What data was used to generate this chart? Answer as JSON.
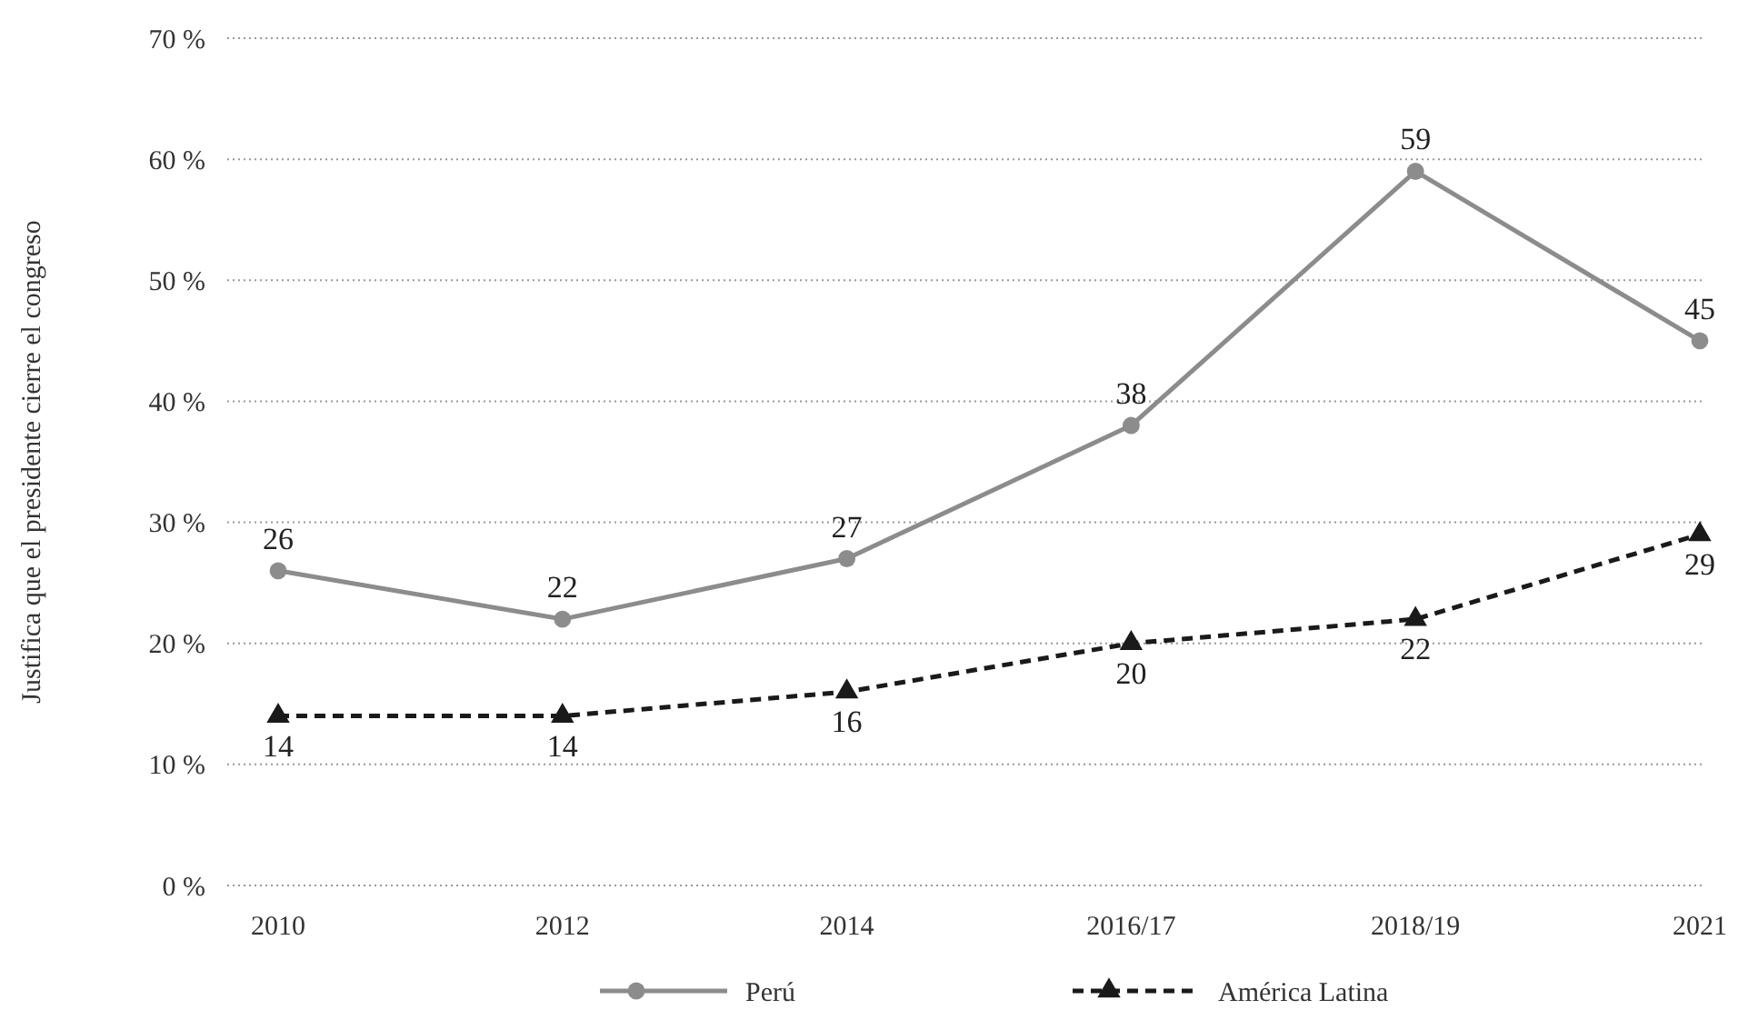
{
  "chart_data": {
    "type": "line",
    "ylabel": "Justifica que el presidente cierre el congreso",
    "categories": [
      "2010",
      "2012",
      "2014",
      "2016/17",
      "2018/19",
      "2021"
    ],
    "series": [
      {
        "name": "Perú",
        "color": "#8c8c8c",
        "values": [
          26,
          22,
          27,
          38,
          59,
          45
        ],
        "marker": "circle",
        "line_style": "solid"
      },
      {
        "name": "América Latina",
        "color": "#1a1a1a",
        "values": [
          14,
          14,
          16,
          20,
          22,
          29
        ],
        "marker": "triangle",
        "line_style": "dashed"
      }
    ],
    "ylim": [
      0,
      70
    ],
    "yticks": [
      {
        "value": 0,
        "label": "0 %"
      },
      {
        "value": 10,
        "label": "10 %"
      },
      {
        "value": 20,
        "label": "20 %"
      },
      {
        "value": 30,
        "label": "30 %"
      },
      {
        "value": 40,
        "label": "40 %"
      },
      {
        "value": 50,
        "label": "50 %"
      },
      {
        "value": 60,
        "label": "60 %"
      },
      {
        "value": 70,
        "label": "70 %"
      }
    ],
    "grid": "y",
    "legend": "bottom",
    "data_labels": true
  }
}
